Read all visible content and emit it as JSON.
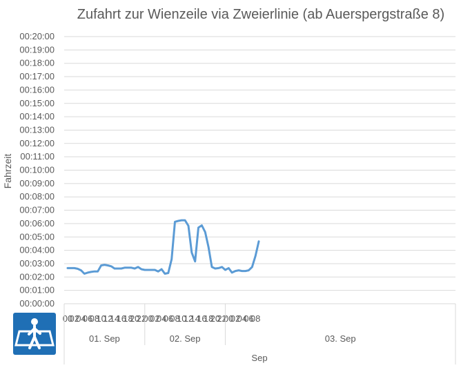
{
  "chart_data": {
    "type": "line",
    "title": "Zufahrt zur Wienzeile via Zweierlinie (ab Auerspergstraße 8)",
    "ylabel": "Fahrzeit",
    "xlabel": "Sep",
    "ylim_seconds": [
      0,
      1200
    ],
    "y_ticks": [
      "00:00:00",
      "00:01:00",
      "00:02:00",
      "00:03:00",
      "00:04:00",
      "00:05:00",
      "00:06:00",
      "00:07:00",
      "00:08:00",
      "00:09:00",
      "00:10:00",
      "00:11:00",
      "00:12:00",
      "00:13:00",
      "00:14:00",
      "00:15:00",
      "00:16:00",
      "00:17:00",
      "00:18:00",
      "00:19:00",
      "00:20:00"
    ],
    "grid": true,
    "days": [
      {
        "label": "01. Sep",
        "hours": [
          "00",
          "02",
          "04",
          "06",
          "08",
          "10",
          "12",
          "14",
          "16",
          "18",
          "20",
          "22"
        ]
      },
      {
        "label": "02. Sep",
        "hours": [
          "00",
          "02",
          "04",
          "06",
          "08",
          "10",
          "12",
          "14",
          "16",
          "18",
          "20",
          "22"
        ]
      },
      {
        "label": "03. Sep",
        "hours": [
          "00",
          "02",
          "04",
          "06",
          "08"
        ]
      }
    ],
    "series": [
      {
        "color": "#5b9bd5",
        "values_seconds": [
          160,
          160,
          160,
          157,
          150,
          135,
          140,
          143,
          145,
          145,
          172,
          175,
          172,
          168,
          158,
          158,
          158,
          162,
          162,
          162,
          158,
          165,
          155,
          152,
          152,
          152,
          152,
          145,
          155,
          135,
          138,
          200,
          368,
          372,
          375,
          375,
          350,
          230,
          190,
          342,
          352,
          322,
          255,
          165,
          158,
          160,
          165,
          152,
          160,
          140,
          147,
          150,
          147,
          147,
          150,
          165,
          215,
          280
        ]
      }
    ]
  },
  "icon": "pedestrian-crossing-icon",
  "colors": {
    "line": "#5b9bd5",
    "icon_bg": "#1f6fb5"
  }
}
